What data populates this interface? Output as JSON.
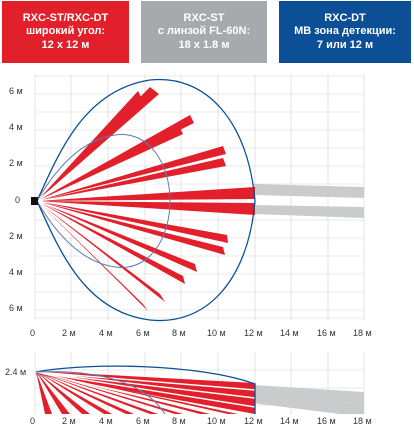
{
  "legend": [
    {
      "line1": "RXC-ST/RXC-DT",
      "line2": "широкий угол:",
      "line3": "12 x 12 м",
      "color": "#e2202b"
    },
    {
      "line1": "RXC-ST",
      "line2": "с линзой FL-60N:",
      "line3": "18 x 1.8 м",
      "color": "#a7aaad"
    },
    {
      "line1": "RXC-DT",
      "line2": "МВ зона детекции:",
      "line3": "7 или 12 м",
      "color": "#0c4f96"
    }
  ],
  "top_view": {
    "y_ticks": [
      {
        "label": "6 м",
        "value": 6
      },
      {
        "label": "4 м",
        "value": 4
      },
      {
        "label": "2 м",
        "value": 2
      },
      {
        "label": "0",
        "value": 0
      },
      {
        "label": "2 м",
        "value": -2
      },
      {
        "label": "4 м",
        "value": -4
      },
      {
        "label": "6 м",
        "value": -6
      }
    ],
    "x_ticks": [
      "0",
      "2 м",
      "4 м",
      "6 м",
      "8 м",
      "10 м",
      "12 м",
      "14 м",
      "16 м",
      "18 м"
    ]
  },
  "side_view": {
    "height_label": "2.4 м",
    "x_ticks": [
      "0",
      "2 м",
      "4 м",
      "6 м",
      "8 м",
      "10 м",
      "12 м",
      "14 м",
      "16 м",
      "18 м"
    ]
  },
  "colors": {
    "red_zone": "#e2202b",
    "gray_zone": "#c9cbcd",
    "blue_zone": "#0c4f96",
    "grid": "#cfd3d6"
  }
}
